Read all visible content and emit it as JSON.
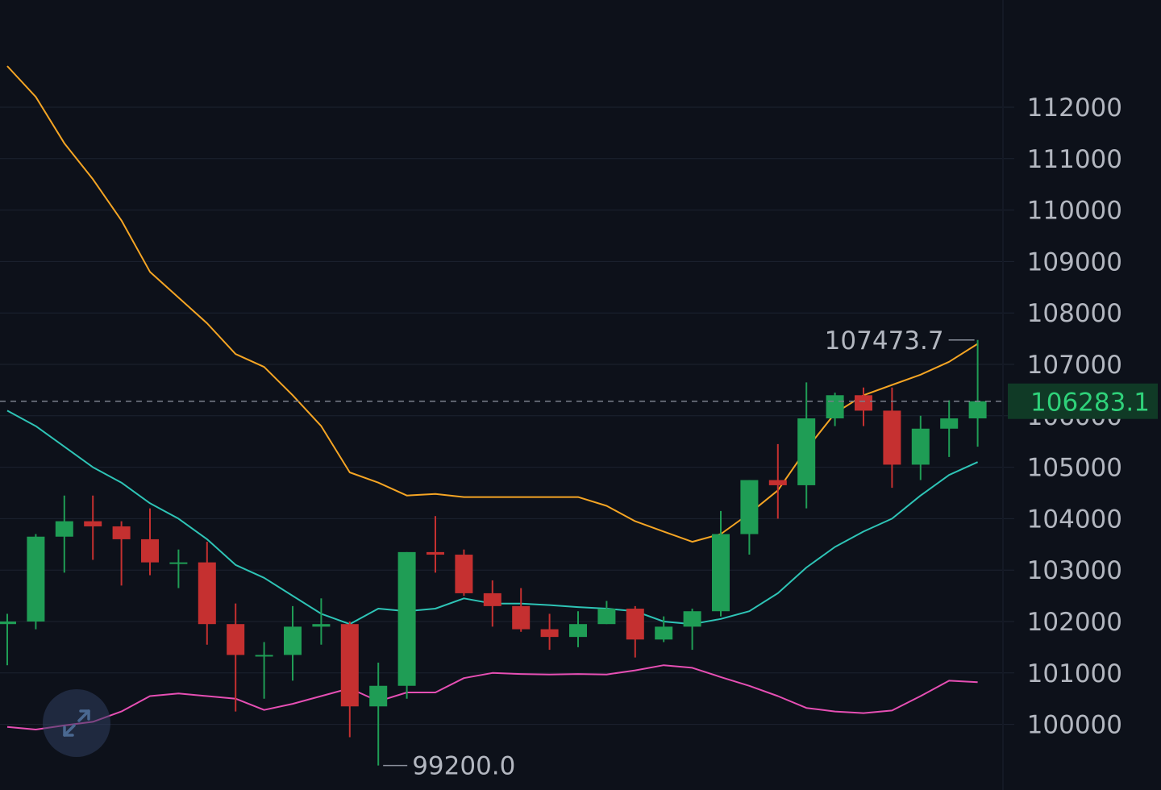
{
  "chart_data": {
    "type": "candlestick",
    "y_ticks": [
      112000,
      111000,
      110000,
      109000,
      108000,
      107000,
      106000,
      105000,
      104000,
      103000,
      102000,
      101000,
      100000
    ],
    "y_tick_labels": [
      "112000",
      "111000",
      "110000",
      "109000",
      "108000",
      "107000",
      "106000",
      "105000",
      "104000",
      "103000",
      "102000",
      "101000",
      "100000"
    ],
    "ylim": [
      99000,
      113000
    ],
    "grid": true,
    "candles": [
      {
        "o": 101950,
        "h": 102150,
        "l": 101150,
        "c": 102000
      },
      {
        "o": 102000,
        "h": 103700,
        "l": 101850,
        "c": 103650
      },
      {
        "o": 103650,
        "h": 104450,
        "l": 102950,
        "c": 103950
      },
      {
        "o": 103950,
        "h": 104450,
        "l": 103200,
        "c": 103850
      },
      {
        "o": 103850,
        "h": 103950,
        "l": 102700,
        "c": 103600
      },
      {
        "o": 103600,
        "h": 104200,
        "l": 102900,
        "c": 103150
      },
      {
        "o": 103150,
        "h": 103400,
        "l": 102650,
        "c": 103150
      },
      {
        "o": 103150,
        "h": 103550,
        "l": 101550,
        "c": 101950
      },
      {
        "o": 101950,
        "h": 102350,
        "l": 100250,
        "c": 101350
      },
      {
        "o": 101350,
        "h": 101600,
        "l": 100500,
        "c": 101350
      },
      {
        "o": 101350,
        "h": 102300,
        "l": 100850,
        "c": 101900
      },
      {
        "o": 101900,
        "h": 102450,
        "l": 101550,
        "c": 101950
      },
      {
        "o": 101950,
        "h": 102000,
        "l": 99750,
        "c": 100350
      },
      {
        "o": 100350,
        "h": 101200,
        "l": 99200,
        "c": 100750
      },
      {
        "o": 100750,
        "h": 103350,
        "l": 100500,
        "c": 103350
      },
      {
        "o": 103350,
        "h": 104050,
        "l": 102950,
        "c": 103300
      },
      {
        "o": 103300,
        "h": 103400,
        "l": 102500,
        "c": 102550
      },
      {
        "o": 102550,
        "h": 102800,
        "l": 101900,
        "c": 102300
      },
      {
        "o": 102300,
        "h": 102650,
        "l": 101800,
        "c": 101850
      },
      {
        "o": 101850,
        "h": 102150,
        "l": 101450,
        "c": 101700
      },
      {
        "o": 101700,
        "h": 102200,
        "l": 101500,
        "c": 101950
      },
      {
        "o": 101950,
        "h": 102400,
        "l": 101950,
        "c": 102250
      },
      {
        "o": 102250,
        "h": 102300,
        "l": 101300,
        "c": 101650
      },
      {
        "o": 101650,
        "h": 102100,
        "l": 101600,
        "c": 101900
      },
      {
        "o": 101900,
        "h": 102250,
        "l": 101450,
        "c": 102200
      },
      {
        "o": 102200,
        "h": 104150,
        "l": 102100,
        "c": 103700
      },
      {
        "o": 103700,
        "h": 104750,
        "l": 103300,
        "c": 104750
      },
      {
        "o": 104750,
        "h": 105450,
        "l": 104000,
        "c": 104650
      },
      {
        "o": 104650,
        "h": 106650,
        "l": 104200,
        "c": 105950
      },
      {
        "o": 105950,
        "h": 106450,
        "l": 105800,
        "c": 106400
      },
      {
        "o": 106400,
        "h": 106550,
        "l": 105800,
        "c": 106100
      },
      {
        "o": 106100,
        "h": 106550,
        "l": 104600,
        "c": 105050
      },
      {
        "o": 105050,
        "h": 106000,
        "l": 104750,
        "c": 105750
      },
      {
        "o": 105750,
        "h": 106300,
        "l": 105200,
        "c": 105950
      },
      {
        "o": 105950,
        "h": 107474,
        "l": 105400,
        "c": 106283
      }
    ],
    "series": [
      {
        "color": "#f5a524",
        "values": [
          112800,
          112200,
          111300,
          110600,
          109800,
          108800,
          108300,
          107800,
          107200,
          106950,
          106400,
          105800,
          104900,
          104700,
          104450,
          104480,
          104420,
          104420,
          104420,
          104420,
          104420,
          104250,
          103950,
          103750,
          103550,
          103700,
          104100,
          104550,
          105350,
          106050,
          106400,
          106600,
          106800,
          107050,
          107400
        ]
      },
      {
        "color": "#2ec4b6",
        "values": [
          106100,
          105800,
          105400,
          105000,
          104700,
          104300,
          104000,
          103600,
          103100,
          102850,
          102500,
          102150,
          101950,
          102250,
          102200,
          102250,
          102450,
          102350,
          102350,
          102320,
          102280,
          102250,
          102200,
          102000,
          101950,
          102050,
          102200,
          102550,
          103050,
          103450,
          103750,
          104000,
          104450,
          104850,
          105100
        ]
      },
      {
        "color": "#e64fb4",
        "values": [
          99950,
          99900,
          99980,
          100050,
          100250,
          100550,
          100600,
          100550,
          100500,
          100280,
          100400,
          100550,
          100700,
          100450,
          100620,
          100620,
          100900,
          101000,
          100980,
          100970,
          100980,
          100970,
          101050,
          101150,
          101100,
          100920,
          100750,
          100550,
          100320,
          100250,
          100220,
          100270,
          100550,
          100850,
          100820
        ]
      }
    ],
    "current_price": 106283.1,
    "current_price_label": "106283.1",
    "high_marker": {
      "value": 107473.7,
      "label": "107473.7",
      "candle_index": 34
    },
    "low_marker": {
      "value": 99200.0,
      "label": "99200.0",
      "candle_index": 13
    },
    "colors": {
      "background": "#0d111a",
      "up": "#1f9d55",
      "down": "#c53030",
      "grid": "#1d2330",
      "tick_text": "#b3b7c0",
      "current_price_text": "#2fd27a",
      "current_price_bg": "#103a26"
    }
  },
  "controls": {
    "expand_icon": "expand-diagonal-arrows-icon"
  }
}
